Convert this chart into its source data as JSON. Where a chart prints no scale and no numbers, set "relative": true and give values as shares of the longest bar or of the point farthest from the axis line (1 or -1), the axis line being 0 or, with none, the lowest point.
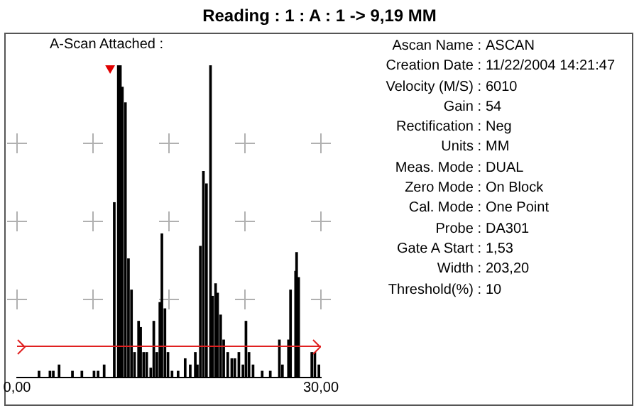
{
  "chart_data": [
    {
      "type": "bar",
      "title": "Reading : 1 : A : 1 -> 9,19 MM",
      "subtitle": "A-Scan Attached :",
      "relative": true,
      "xlim": [
        0,
        30
      ],
      "xticks": [
        {
          "value": 0,
          "label": "0,00"
        },
        {
          "value": 30,
          "label": "30,00"
        }
      ],
      "ref_lines": [
        {
          "axis": "y",
          "value": 0.1,
          "color": "#e02020"
        }
      ],
      "series": [
        {
          "type": "bar",
          "color": "#000000",
          "x": [
            2.17,
            3.25,
            3.58,
            4.15,
            5.47,
            6.4,
            7.6,
            8.0,
            8.6,
            9.6,
            10.0,
            10.2,
            10.4,
            10.7,
            11.0,
            11.3,
            11.6,
            12.0,
            12.2,
            12.5,
            12.8,
            13.2,
            13.5,
            13.8,
            14.1,
            14.3,
            14.6,
            14.9,
            15.3,
            15.9,
            16.6,
            17.1,
            17.6,
            17.8,
            18.1,
            18.4,
            18.7,
            19.1,
            19.3,
            19.6,
            19.8,
            20.1,
            20.4,
            20.8,
            21.2,
            21.5,
            21.9,
            22.3,
            22.6,
            22.9,
            23.3,
            24.2,
            25.0,
            25.9,
            26.2,
            26.8,
            27.0,
            27.5,
            27.6,
            27.8,
            29.1,
            29.4,
            29.8
          ],
          "values": [
            0.02,
            0.02,
            0.02,
            0.04,
            0.02,
            0.02,
            0.02,
            0.02,
            0.04,
            0.56,
            1.0,
            1.0,
            0.93,
            0.88,
            0.38,
            0.28,
            0.08,
            0.18,
            0.16,
            0.08,
            0.08,
            0.03,
            0.18,
            0.08,
            0.24,
            0.46,
            0.22,
            0.08,
            0.02,
            0.02,
            0.06,
            0.04,
            0.08,
            0.04,
            0.42,
            0.66,
            0.62,
            1.0,
            0.26,
            0.3,
            0.27,
            0.2,
            0.12,
            0.08,
            0.06,
            0.06,
            0.08,
            0.04,
            0.18,
            0.08,
            0.04,
            0.02,
            0.02,
            0.12,
            0.04,
            0.12,
            0.28,
            0.34,
            0.4,
            0.32,
            0.08,
            0.08,
            0.04
          ]
        },
        {
          "type": "scatter",
          "color": "#e00000",
          "marker": "triangle",
          "x": [
            9.19
          ],
          "values": [
            1.0
          ]
        }
      ]
    },
    {
      "type": "other",
      "annotations": [
        "Ascan Name : ASCAN",
        "Creation Date : 11/22/2004 14:21:47",
        "Velocity (M/S) : 6010",
        "Gain : 54",
        "Rectification : Neg",
        "Units : MM",
        "Meas. Mode : DUAL",
        "Zero Mode : On Block",
        "Cal. Mode : One Point",
        "Probe : DA301",
        "Gate A Start : 1,53",
        "Width : 203,20",
        "Threshold(%) : 10"
      ]
    }
  ]
}
